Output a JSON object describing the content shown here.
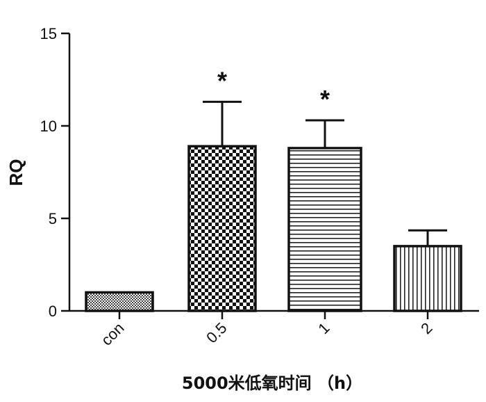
{
  "chart_data": {
    "type": "bar",
    "xlabel": "5000米低氧时间 （h）",
    "ylabel": "RQ",
    "ylim": [
      0,
      15
    ],
    "yticks": [
      0,
      5,
      10,
      15
    ],
    "categories": [
      "con",
      "0.5",
      "1",
      "2"
    ],
    "values": [
      1.0,
      8.9,
      8.8,
      3.5
    ],
    "error": [
      0,
      2.4,
      1.5,
      0.85
    ],
    "significance": [
      "",
      "*",
      "*",
      ""
    ],
    "fill_patterns": [
      "fine-dots",
      "checker",
      "horizontal-lines",
      "vertical-lines"
    ]
  }
}
